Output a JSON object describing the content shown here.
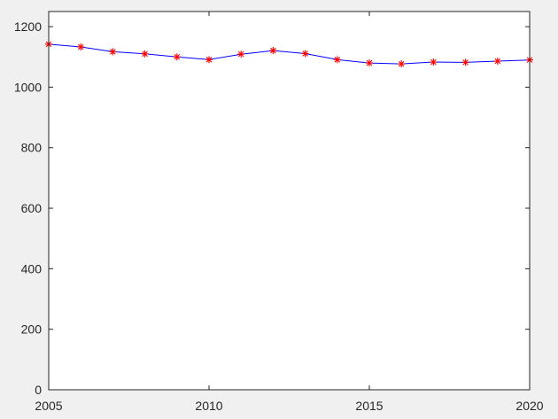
{
  "chart_data": {
    "type": "line",
    "title": "",
    "xlabel": "",
    "ylabel": "",
    "xlim": [
      2005,
      2020
    ],
    "ylim": [
      0,
      1250
    ],
    "x_ticks": [
      2005,
      2010,
      2015,
      2020
    ],
    "y_ticks": [
      0,
      200,
      400,
      600,
      800,
      1000,
      1200
    ],
    "grid": false,
    "legend": "none",
    "colors": {
      "line": "#0000ff",
      "marker": "#ff0000",
      "axes": "#262626",
      "plot_bg": "#ffffff",
      "figure_bg": "#f0f0f0"
    },
    "series": [
      {
        "marker": "asterisk",
        "x": [
          2005,
          2006,
          2007,
          2008,
          2009,
          2010,
          2011,
          2012,
          2013,
          2014,
          2015,
          2016,
          2017,
          2018,
          2019,
          2020
        ],
        "values": [
          1142,
          1133,
          1117,
          1110,
          1100,
          1091,
          1109,
          1121,
          1111,
          1091,
          1080,
          1077,
          1083,
          1082,
          1086,
          1090
        ]
      }
    ]
  }
}
